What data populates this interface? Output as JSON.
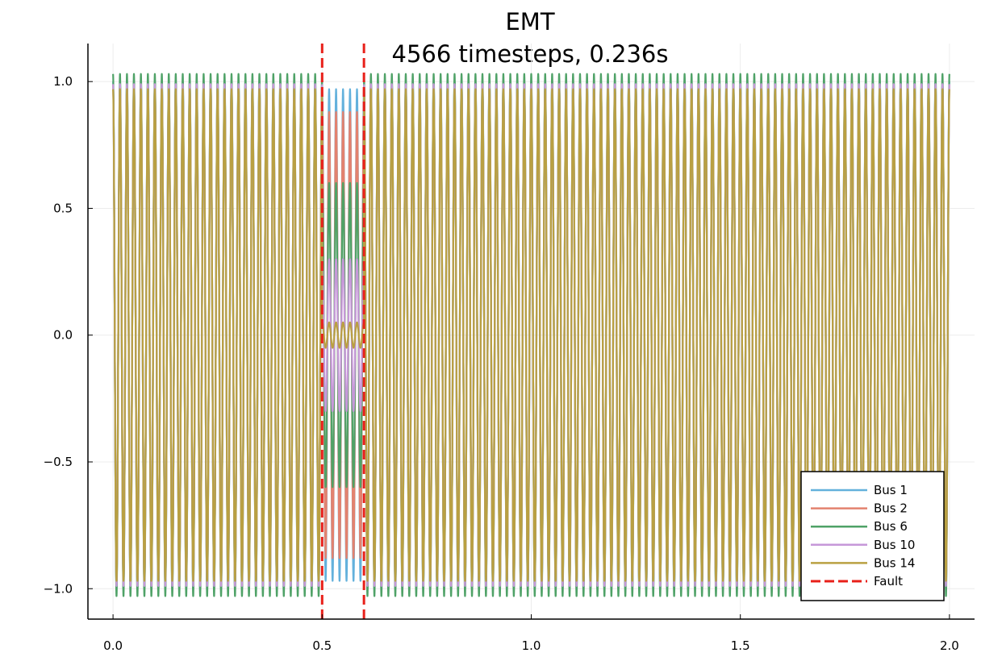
{
  "chart_data": {
    "type": "line",
    "title": "EMT",
    "subtitle": "4566 timesteps, 0.236s",
    "xlabel": "",
    "ylabel": "",
    "xlim": [
      -0.06,
      2.06
    ],
    "ylim": [
      -1.12,
      1.15
    ],
    "x_ticks": [
      {
        "value": 0.0,
        "label": "0.0"
      },
      {
        "value": 0.5,
        "label": "0.5"
      },
      {
        "value": 1.0,
        "label": "1.0"
      },
      {
        "value": 1.5,
        "label": "1.5"
      },
      {
        "value": 2.0,
        "label": "2.0"
      }
    ],
    "y_ticks": [
      {
        "value": -1.0,
        "label": "−1.0"
      },
      {
        "value": -0.5,
        "label": "−0.5"
      },
      {
        "value": 0.0,
        "label": "0.0"
      },
      {
        "value": 0.5,
        "label": "0.5"
      },
      {
        "value": 1.0,
        "label": "1.0"
      }
    ],
    "grid": true,
    "legend_position": "bottom-right",
    "frequency_hz": 60,
    "fault_window": [
      0.5,
      0.6
    ],
    "series": [
      {
        "name": "Bus 1",
        "color": "#63b1dc",
        "amplitude": 1.0,
        "fault_amplitude": 0.97
      },
      {
        "name": "Bus 2",
        "color": "#e3826f",
        "amplitude": 0.99,
        "fault_amplitude": 0.88
      },
      {
        "name": "Bus 6",
        "color": "#4fa267",
        "amplitude": 1.03,
        "fault_amplitude": 0.6
      },
      {
        "name": "Bus 10",
        "color": "#c698d8",
        "amplitude": 0.99,
        "fault_amplitude": 0.3
      },
      {
        "name": "Bus 14",
        "color": "#b9a042",
        "amplitude": 0.97,
        "fault_amplitude": 0.05
      }
    ],
    "fault": {
      "name": "Fault",
      "color": "#e8201a",
      "x": [
        0.5,
        0.6
      ]
    }
  }
}
